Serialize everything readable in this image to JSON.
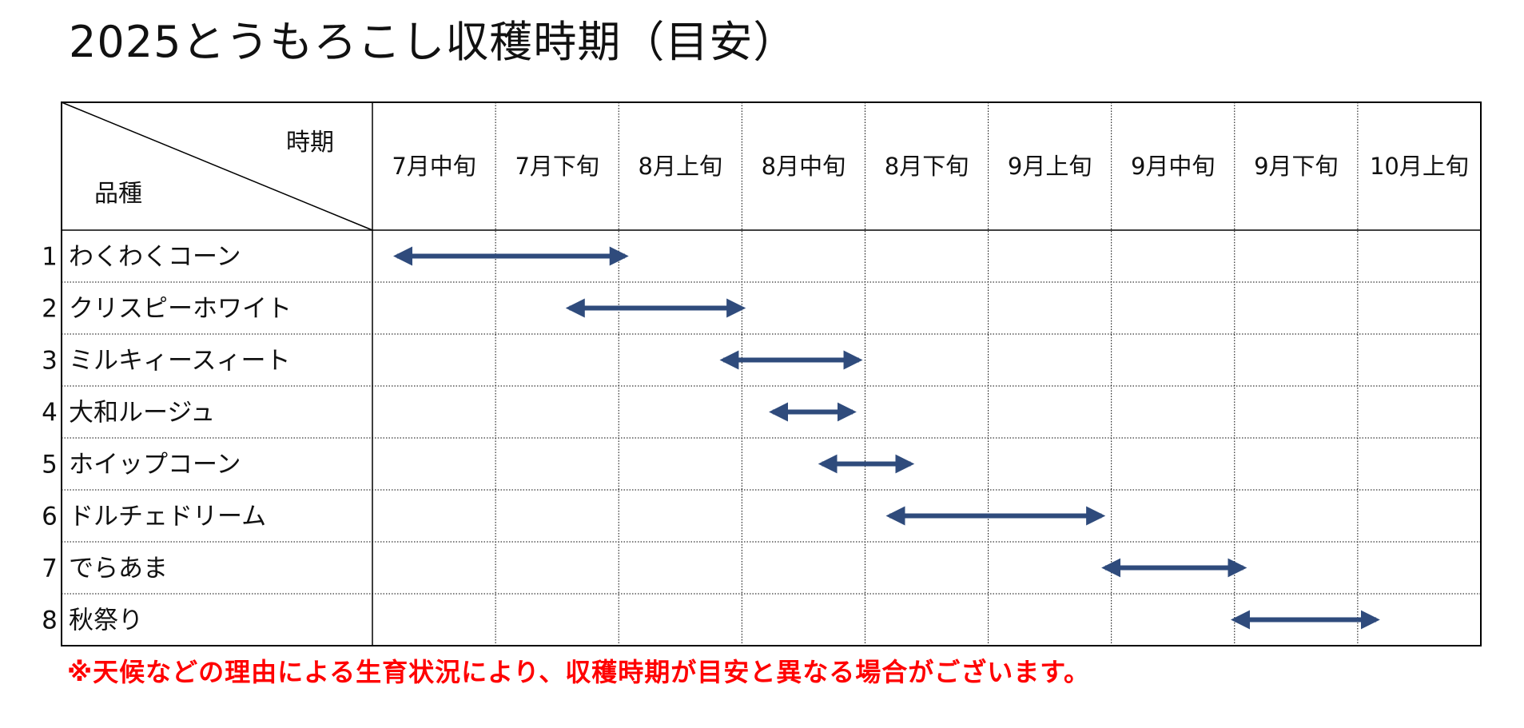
{
  "title": "2025とうもろこし収穫時期（目安）",
  "header": {
    "period_label": "時期",
    "variety_label": "品種"
  },
  "note": "※天候などの理由による生育状況により、収穫時期が目安と異なる場合がございます。",
  "colors": {
    "arrow": "#2f4b7c",
    "note": "#ff0000",
    "grid": "#000000"
  },
  "chart_data": {
    "type": "gantt",
    "periods": [
      "7月中旬",
      "7月下旬",
      "8月上旬",
      "8月中旬",
      "8月下旬",
      "9月上旬",
      "9月中旬",
      "9月下旬",
      "10月上旬"
    ],
    "rows": [
      {
        "no": "1",
        "variety": "わくわくコーン",
        "start": 0.2,
        "end": 2.05
      },
      {
        "no": "2",
        "variety": "クリスピーホワイト",
        "start": 1.6,
        "end": 3.0
      },
      {
        "no": "3",
        "variety": "ミルキィースィート",
        "start": 2.85,
        "end": 3.95
      },
      {
        "no": "4",
        "variety": "大和ルージュ",
        "start": 3.25,
        "end": 3.9
      },
      {
        "no": "5",
        "variety": "ホイップコーン",
        "start": 3.65,
        "end": 4.37
      },
      {
        "no": "6",
        "variety": "ドルチェドリーム",
        "start": 4.2,
        "end": 5.92
      },
      {
        "no": "7",
        "variety": "でらあま",
        "start": 5.95,
        "end": 7.07
      },
      {
        "no": "8",
        "variety": "秋祭り",
        "start": 7.0,
        "end": 8.15
      }
    ]
  }
}
